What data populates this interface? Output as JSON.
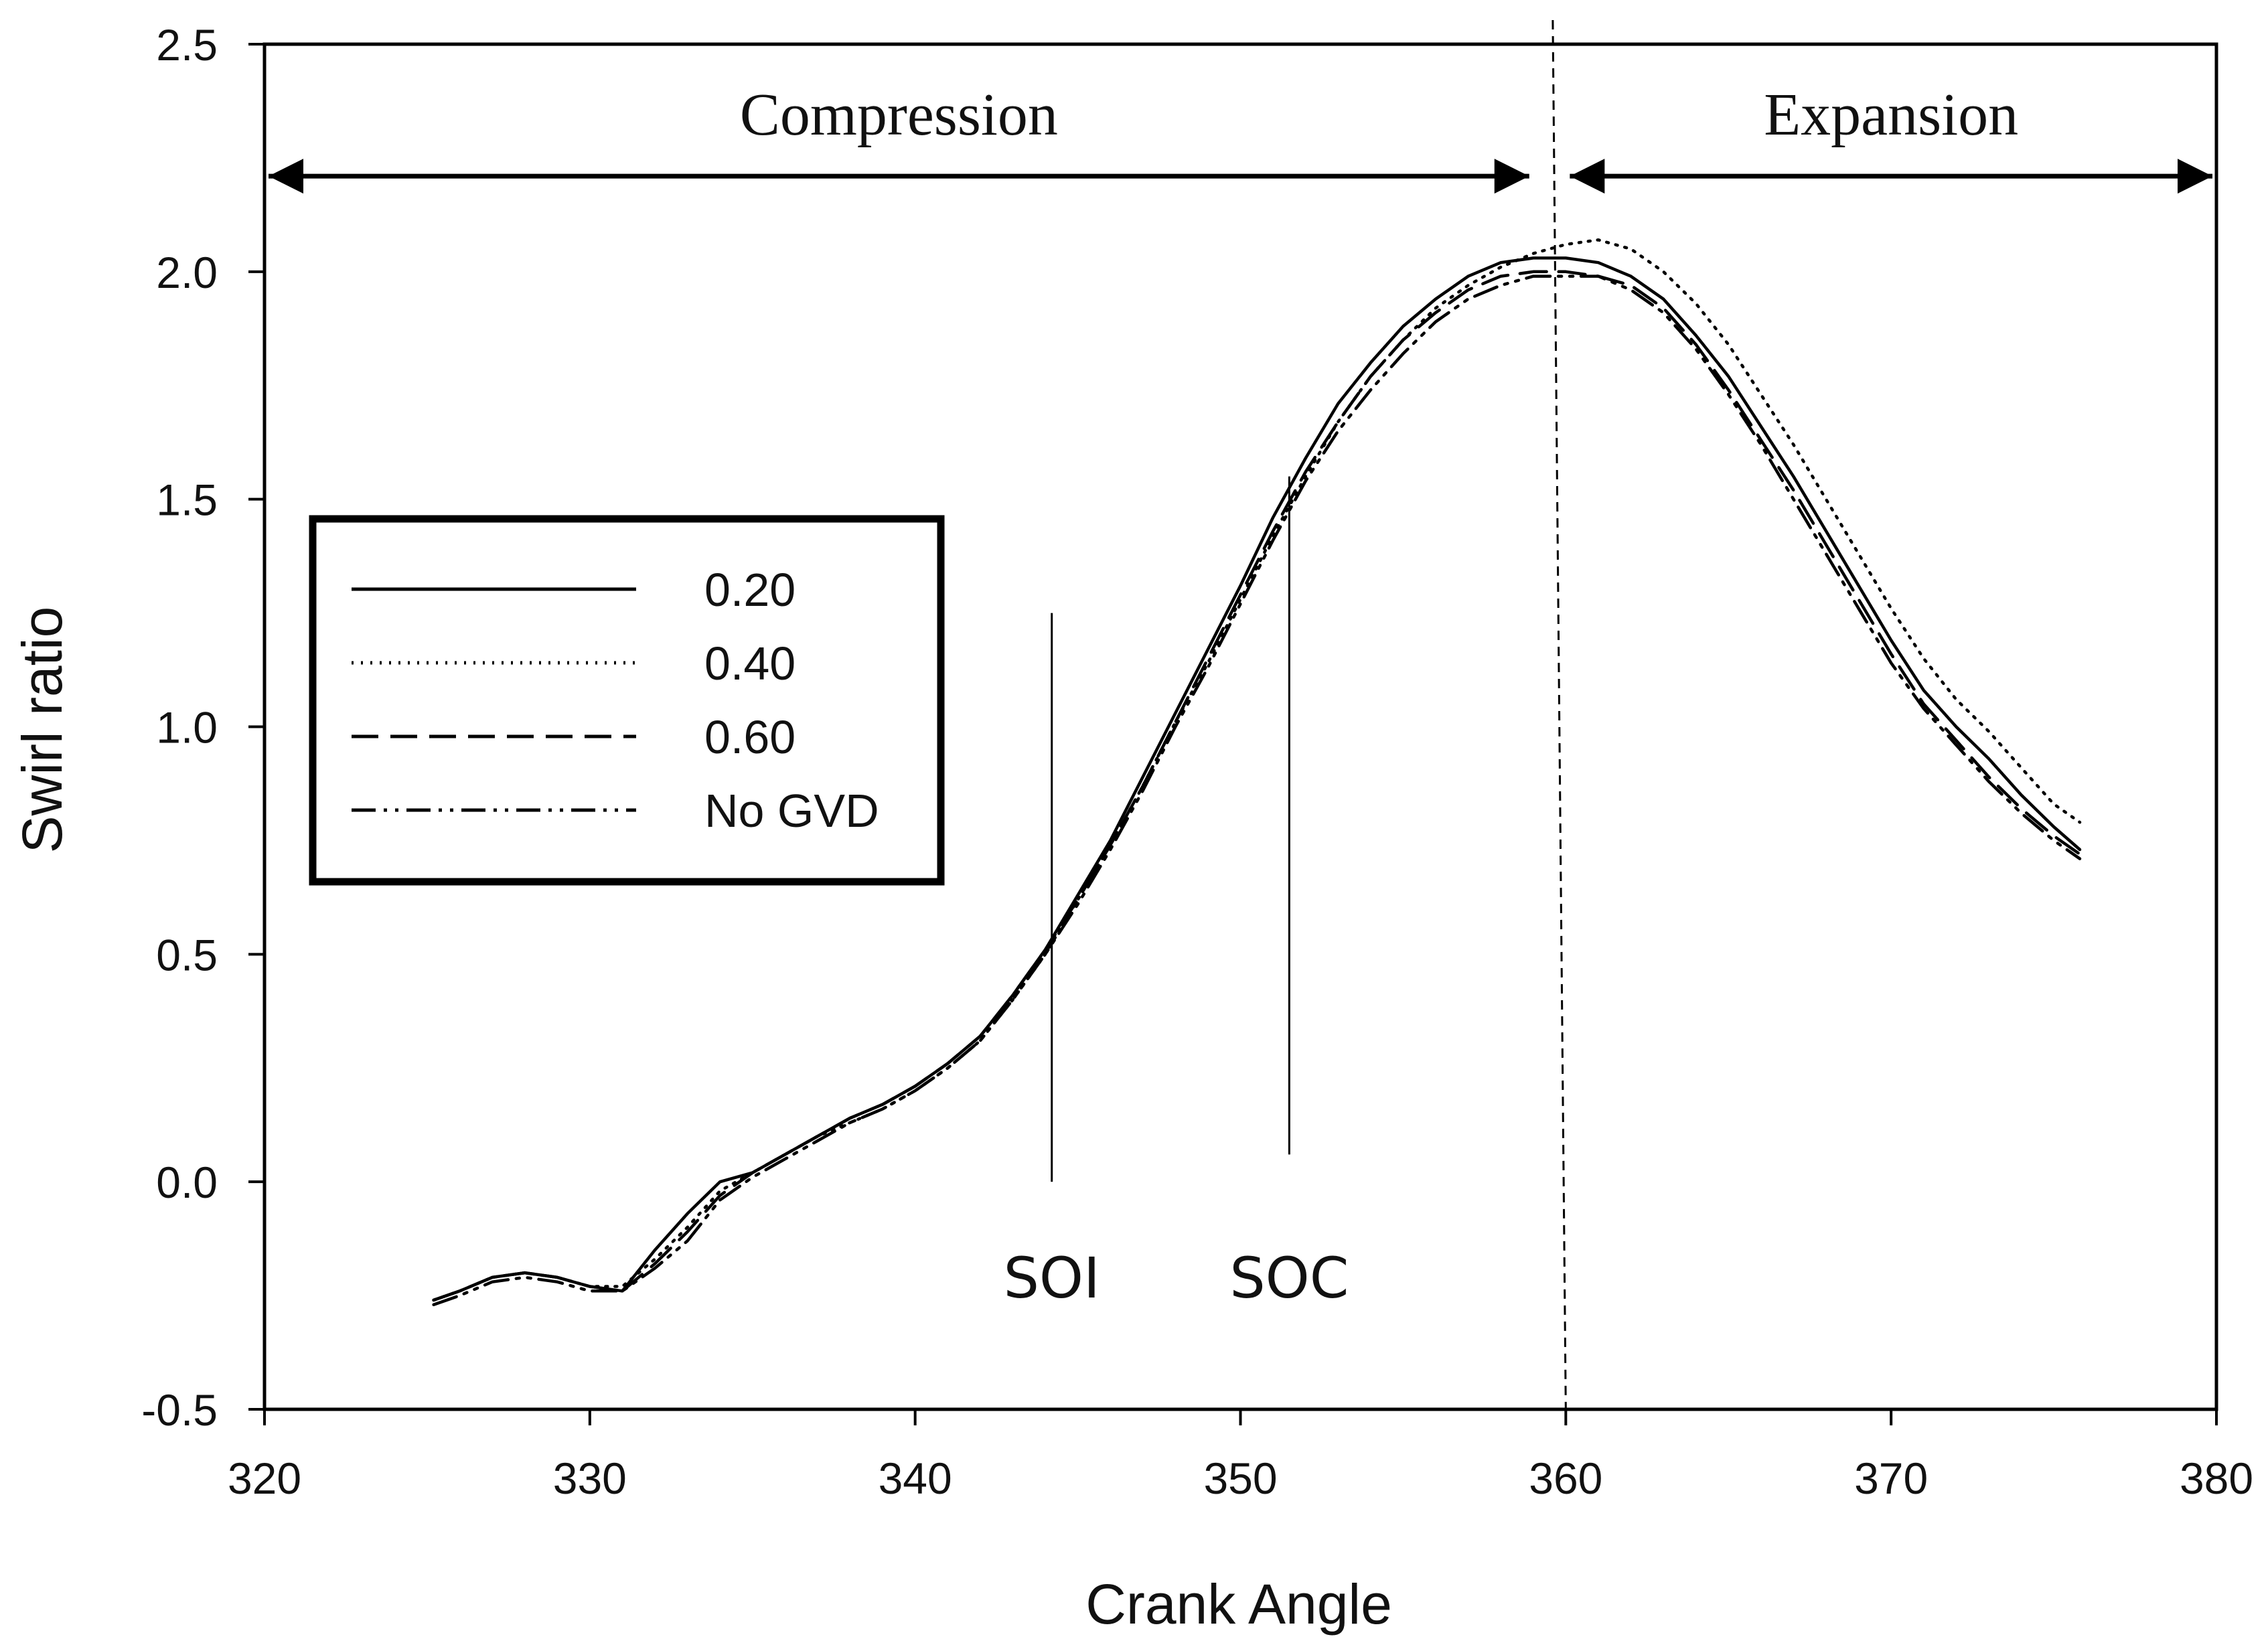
{
  "chart_data": {
    "type": "line",
    "title": "",
    "xlabel": "Crank Angle",
    "ylabel": "Swirl ratio",
    "xlim": [
      320,
      380
    ],
    "ylim": [
      -0.5,
      2.5
    ],
    "xticks": [
      320,
      330,
      340,
      350,
      360,
      370,
      380
    ],
    "xtick_labels": [
      "320",
      "330",
      "340",
      "350",
      "360",
      "370",
      "380"
    ],
    "yticks": [
      -0.5,
      0.0,
      0.5,
      1.0,
      1.5,
      2.0,
      2.5
    ],
    "ytick_labels": [
      "-0.5",
      "0.0",
      "0.5",
      "1.0",
      "1.5",
      "2.0",
      "2.5"
    ],
    "grid": false,
    "legend_position": "left",
    "x": [
      325.2,
      326,
      327,
      328,
      329,
      330,
      331,
      332,
      333,
      334,
      335,
      336,
      337,
      338,
      339,
      340,
      341,
      342,
      343,
      344,
      345,
      346,
      347,
      348,
      349,
      350,
      351,
      352,
      353,
      354,
      355,
      356,
      357,
      358,
      359,
      360,
      361,
      362,
      363,
      364,
      365,
      366,
      367,
      368,
      369,
      370,
      371,
      372,
      373,
      374,
      375,
      375.8
    ],
    "series": [
      {
        "name": "0.20",
        "dash": "solid",
        "values": [
          -0.26,
          -0.24,
          -0.21,
          -0.2,
          -0.21,
          -0.23,
          -0.24,
          -0.15,
          -0.07,
          0.0,
          0.02,
          0.06,
          0.1,
          0.14,
          0.17,
          0.21,
          0.26,
          0.32,
          0.41,
          0.51,
          0.63,
          0.75,
          0.89,
          1.03,
          1.17,
          1.31,
          1.46,
          1.59,
          1.71,
          1.8,
          1.88,
          1.94,
          1.99,
          2.02,
          2.03,
          2.03,
          2.02,
          1.99,
          1.94,
          1.86,
          1.77,
          1.66,
          1.55,
          1.43,
          1.31,
          1.19,
          1.08,
          1.0,
          0.93,
          0.85,
          0.78,
          0.73
        ]
      },
      {
        "name": "0.40",
        "dash": "dotted",
        "values": [
          -0.26,
          -0.24,
          -0.21,
          -0.2,
          -0.21,
          -0.23,
          -0.23,
          -0.17,
          -0.1,
          -0.02,
          0.02,
          0.06,
          0.1,
          0.13,
          0.16,
          0.2,
          0.25,
          0.31,
          0.4,
          0.5,
          0.62,
          0.74,
          0.87,
          1.01,
          1.14,
          1.28,
          1.42,
          1.55,
          1.67,
          1.77,
          1.85,
          1.92,
          1.97,
          2.01,
          2.04,
          2.06,
          2.07,
          2.05,
          2.0,
          1.93,
          1.84,
          1.73,
          1.62,
          1.5,
          1.38,
          1.26,
          1.15,
          1.06,
          0.99,
          0.91,
          0.83,
          0.79
        ]
      },
      {
        "name": "0.60",
        "dash": "dashed",
        "values": [
          -0.26,
          -0.24,
          -0.21,
          -0.2,
          -0.21,
          -0.23,
          -0.24,
          -0.18,
          -0.11,
          -0.03,
          0.02,
          0.06,
          0.1,
          0.14,
          0.17,
          0.21,
          0.26,
          0.32,
          0.41,
          0.51,
          0.62,
          0.74,
          0.87,
          1.01,
          1.15,
          1.29,
          1.43,
          1.56,
          1.67,
          1.77,
          1.85,
          1.91,
          1.96,
          1.99,
          2.0,
          2.0,
          1.99,
          1.97,
          1.92,
          1.84,
          1.74,
          1.63,
          1.52,
          1.4,
          1.28,
          1.16,
          1.05,
          0.97,
          0.89,
          0.82,
          0.76,
          0.72
        ]
      },
      {
        "name": "No GVD",
        "dash": "dash-dot-dot",
        "values": [
          -0.27,
          -0.25,
          -0.22,
          -0.21,
          -0.22,
          -0.24,
          -0.24,
          -0.19,
          -0.13,
          -0.04,
          0.01,
          0.05,
          0.09,
          0.13,
          0.16,
          0.2,
          0.25,
          0.31,
          0.4,
          0.5,
          0.61,
          0.73,
          0.86,
          1.0,
          1.13,
          1.27,
          1.41,
          1.54,
          1.65,
          1.74,
          1.82,
          1.89,
          1.94,
          1.97,
          1.99,
          1.99,
          1.99,
          1.96,
          1.91,
          1.83,
          1.73,
          1.62,
          1.5,
          1.38,
          1.26,
          1.14,
          1.04,
          0.96,
          0.88,
          0.81,
          0.75,
          0.71
        ]
      }
    ],
    "annotations": [
      {
        "text": "Compression",
        "x_from": 320,
        "x_to": 359,
        "y": 2.21,
        "kind": "double-arrow"
      },
      {
        "text": "Expansion",
        "x_from": 360,
        "x_to": 380,
        "y": 2.21,
        "kind": "double-arrow"
      },
      {
        "text": "SOI",
        "x": 344.2,
        "y_from": 0.0,
        "y_to": 1.25,
        "label_y": -0.21,
        "kind": "marker-line"
      },
      {
        "text": "SOC",
        "x": 351.5,
        "y_from": 0.06,
        "y_to": 1.55,
        "label_y": -0.21,
        "kind": "marker-line"
      },
      {
        "text": "",
        "x_top": 359.6,
        "x_bottom": 360.0,
        "y_from": 2.55,
        "y_to": -0.5,
        "kind": "tdc-dashed-line"
      }
    ]
  }
}
